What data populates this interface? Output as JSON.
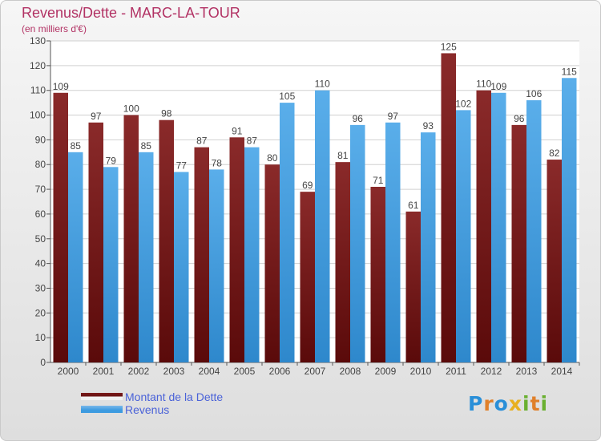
{
  "chart_data": {
    "type": "bar",
    "title": "Revenus/Dette - MARC-LA-TOUR",
    "subtitle": "(en milliers d'€)",
    "categories": [
      "2000",
      "2001",
      "2002",
      "2003",
      "2004",
      "2005",
      "2006",
      "2007",
      "2008",
      "2009",
      "2010",
      "2011",
      "2012",
      "2013",
      "2014"
    ],
    "series": [
      {
        "name": "Montant de la Dette",
        "color": "#7a1a1a",
        "values": [
          109,
          97,
          100,
          98,
          87,
          91,
          80,
          69,
          81,
          71,
          61,
          125,
          110,
          96,
          82
        ]
      },
      {
        "name": "Revenus",
        "color": "#3d9be0",
        "values": [
          85,
          79,
          85,
          77,
          78,
          87,
          105,
          110,
          96,
          97,
          93,
          102,
          109,
          106,
          115
        ]
      }
    ],
    "ylim": [
      0,
      130
    ],
    "yticks": [
      0,
      10,
      20,
      30,
      40,
      50,
      60,
      70,
      80,
      90,
      100,
      110,
      120,
      130
    ],
    "grid": true,
    "legend_position": "bottom-left"
  },
  "logo": {
    "letters": [
      {
        "char": "P",
        "color": "#2a8fd8"
      },
      {
        "char": "r",
        "color": "#e0802a"
      },
      {
        "char": "o",
        "color": "#2a8fd8"
      },
      {
        "char": "x",
        "color": "#e8b020"
      },
      {
        "char": "i",
        "color": "#6ab030"
      },
      {
        "char": "t",
        "color": "#e0802a"
      },
      {
        "char": "i",
        "color": "#6ab030"
      }
    ]
  }
}
